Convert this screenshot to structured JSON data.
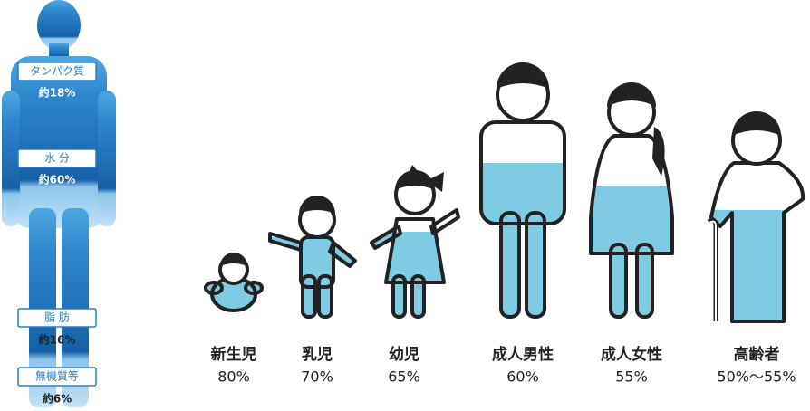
{
  "body_composition": [
    {
      "label": "タンパク質",
      "value": "約18%"
    },
    {
      "label": "水 分",
      "value": "約60%"
    },
    {
      "label": "脂 肪",
      "value": "約16%"
    },
    {
      "label": "無機質等",
      "value": "約6%"
    }
  ],
  "groups": [
    {
      "label": "新生児",
      "value": "80%"
    },
    {
      "label": "乳児",
      "value": "70%"
    },
    {
      "label": "幼児",
      "value": "65%"
    },
    {
      "label": "成人男性",
      "value": "60%"
    },
    {
      "label": "成人女性",
      "value": "55%"
    },
    {
      "label": "高齢者",
      "value": "50%～55%"
    }
  ]
}
